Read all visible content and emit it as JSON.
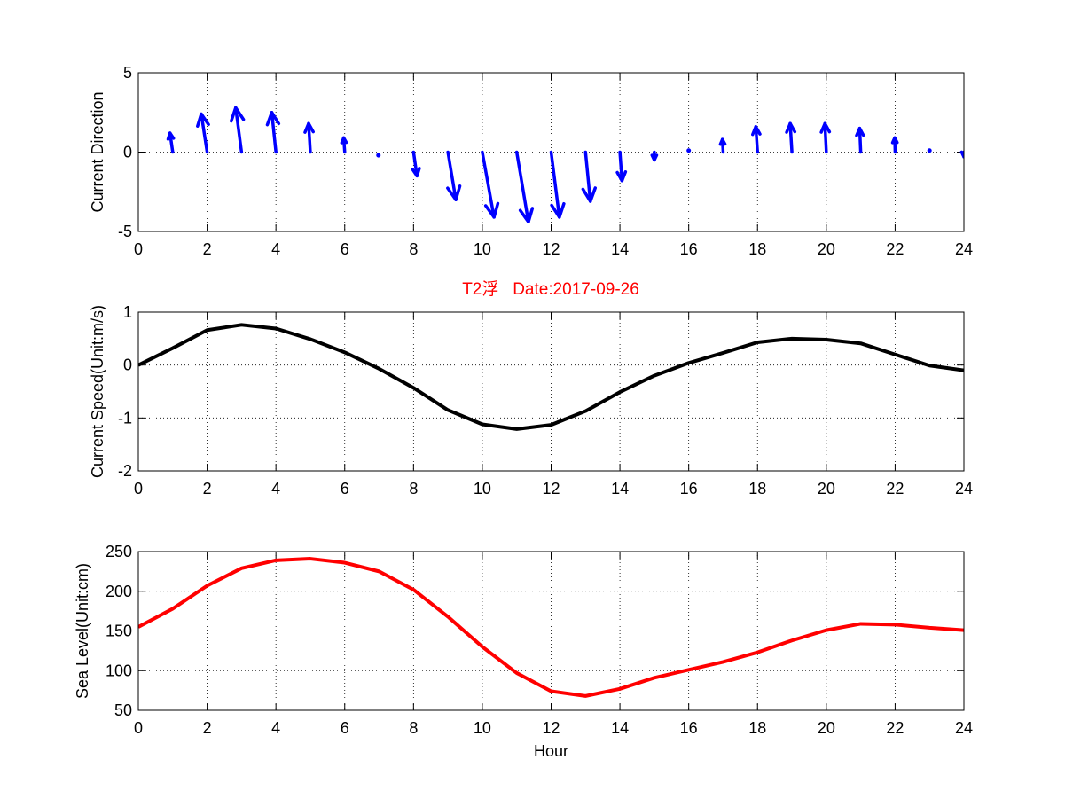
{
  "figure_title": "T2浮   Date:2017-09-26",
  "colors": {
    "direction": "#0000ff",
    "speed": "#000000",
    "level": "#ff0000",
    "title": "#ff0000"
  },
  "chart_data": [
    {
      "type": "quiver",
      "ylabel": "Current Direction",
      "xlim": [
        0,
        24
      ],
      "ylim": [
        -5,
        5
      ],
      "xticks": [
        0,
        2,
        4,
        6,
        8,
        10,
        12,
        14,
        16,
        18,
        20,
        22,
        24
      ],
      "yticks": [
        -5,
        0,
        5
      ],
      "grid": true,
      "x": [
        1,
        2,
        3,
        4,
        5,
        6,
        7,
        8,
        9,
        10,
        11,
        12,
        13,
        14,
        15,
        16,
        17,
        18,
        19,
        20,
        21,
        22,
        23,
        24
      ],
      "u": [
        -0.08,
        -0.17,
        -0.17,
        -0.12,
        -0.05,
        -0.03,
        -0.02,
        0.1,
        0.23,
        0.34,
        0.34,
        0.24,
        0.14,
        0.06,
        0.0,
        0.0,
        -0.02,
        -0.05,
        -0.05,
        -0.04,
        -0.03,
        -0.01,
        0.0,
        0.0
      ],
      "v": [
        1.2,
        2.4,
        2.8,
        2.5,
        1.8,
        0.9,
        -0.2,
        -1.5,
        -3.0,
        -4.1,
        -4.4,
        -4.1,
        -3.1,
        -1.8,
        -0.5,
        0.1,
        0.8,
        1.6,
        1.8,
        1.8,
        1.5,
        0.9,
        0.1,
        -0.3
      ]
    },
    {
      "type": "line",
      "ylabel": "Current Speed(Unit:m/s)",
      "xlim": [
        0,
        24
      ],
      "ylim": [
        -2,
        1
      ],
      "xticks": [
        0,
        2,
        4,
        6,
        8,
        10,
        12,
        14,
        16,
        18,
        20,
        22,
        24
      ],
      "yticks": [
        -2,
        -1,
        0,
        1
      ],
      "grid": true,
      "x": [
        0,
        1,
        2,
        3,
        4,
        5,
        6,
        7,
        8,
        9,
        10,
        11,
        12,
        13,
        14,
        15,
        16,
        17,
        18,
        19,
        20,
        21,
        22,
        23,
        24
      ],
      "y": [
        0.0,
        0.32,
        0.66,
        0.76,
        0.69,
        0.49,
        0.24,
        -0.07,
        -0.43,
        -0.85,
        -1.12,
        -1.21,
        -1.13,
        -0.87,
        -0.51,
        -0.2,
        0.04,
        0.23,
        0.43,
        0.5,
        0.48,
        0.41,
        0.2,
        -0.01,
        -0.1
      ]
    },
    {
      "type": "line",
      "ylabel": "Sea Level(Unit:cm)",
      "xlabel": "Hour",
      "xlim": [
        0,
        24
      ],
      "ylim": [
        50,
        250
      ],
      "xticks": [
        0,
        2,
        4,
        6,
        8,
        10,
        12,
        14,
        16,
        18,
        20,
        22,
        24
      ],
      "yticks": [
        50,
        100,
        150,
        200,
        250
      ],
      "grid": true,
      "x": [
        0,
        1,
        2,
        3,
        4,
        5,
        6,
        7,
        8,
        9,
        10,
        11,
        12,
        13,
        14,
        15,
        16,
        17,
        18,
        19,
        20,
        21,
        22,
        23,
        24
      ],
      "y": [
        155,
        178,
        207,
        229,
        239,
        241,
        236,
        225,
        202,
        168,
        130,
        97,
        74,
        68,
        77,
        91,
        101,
        111,
        123,
        138,
        151,
        159,
        158,
        154,
        151
      ]
    }
  ]
}
